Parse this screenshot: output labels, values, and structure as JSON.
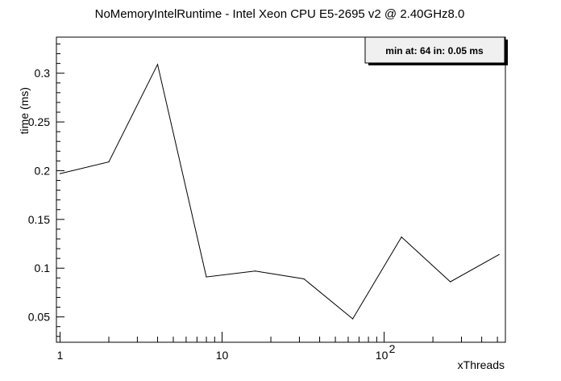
{
  "chart_data": {
    "type": "line",
    "title": "NoMemoryIntelRuntime - Intel Xeon CPU E5-2695 v2 @ 2.40GHz8.0",
    "xlabel": "xThreads",
    "ylabel": "time (ms)",
    "x_scale": "log",
    "xlim": [
      0.95,
      560
    ],
    "ylim": [
      0.024,
      0.337
    ],
    "x_tick_labels": [
      {
        "value": 1,
        "label": "1"
      },
      {
        "value": 10,
        "label": "10"
      },
      {
        "value": 100,
        "base": "10",
        "exp": "2"
      }
    ],
    "y_ticks": [
      0.05,
      0.1,
      0.15,
      0.2,
      0.25,
      0.3
    ],
    "y_tick_labels": [
      "0.05",
      "0.1",
      "0.15",
      "0.2",
      "0.25",
      "0.3"
    ],
    "series": [
      {
        "color": "#000000",
        "x": [
          1,
          2,
          4,
          8,
          16,
          32,
          64,
          128,
          256,
          512
        ],
        "y": [
          0.197,
          0.209,
          0.309,
          0.091,
          0.097,
          0.089,
          0.048,
          0.132,
          0.086,
          0.114
        ]
      }
    ],
    "annotation": "min at: 64 in: 0.05 ms",
    "grid": false
  }
}
